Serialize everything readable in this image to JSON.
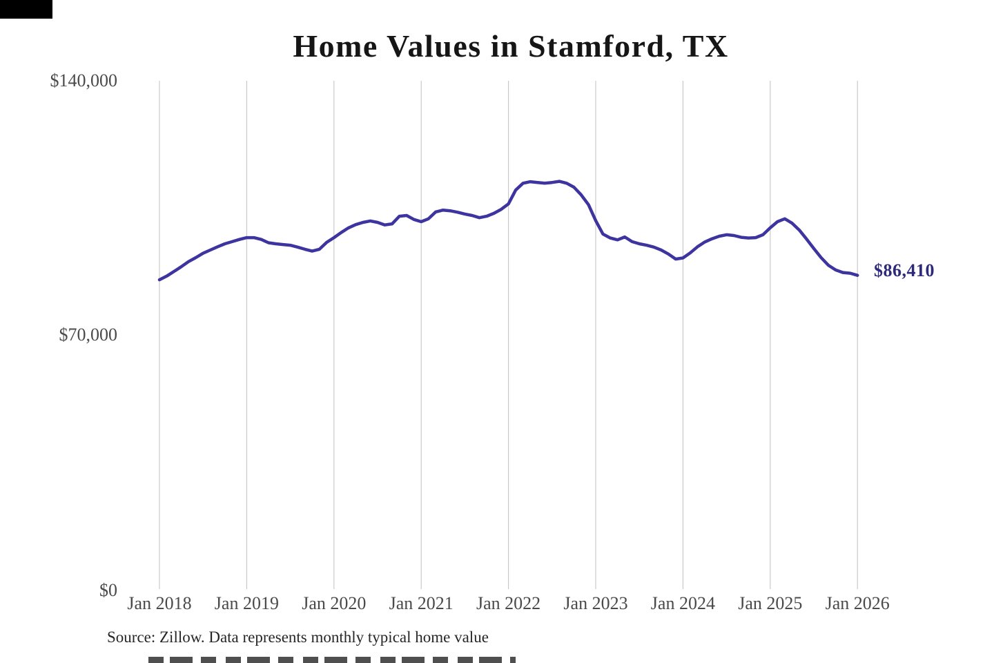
{
  "title": "Home Values in Stamford, TX",
  "source_note": "Source: Zillow. Data represents monthly typical home value",
  "end_label": "$86,410",
  "colors": {
    "line": "#3e34a0",
    "end_label_text": "#2e2a7a",
    "gridline": "#c5c5c5",
    "axis_text": "#4a4a4a",
    "title_text": "#161616",
    "source_text": "#262626"
  },
  "y_axis": {
    "ticks": [
      {
        "label": "$140,000",
        "value": 140000
      },
      {
        "label": "$70,000",
        "value": 70000
      },
      {
        "label": "$0",
        "value": 0
      }
    ]
  },
  "x_axis": {
    "ticks": [
      "Jan 2018",
      "Jan 2019",
      "Jan 2020",
      "Jan 2021",
      "Jan 2022",
      "Jan 2023",
      "Jan 2024",
      "Jan 2025",
      "Jan 2026"
    ]
  },
  "chart_data": {
    "type": "line",
    "title": "Home Values in Stamford, TX",
    "xlabel": "",
    "ylabel": "",
    "unit": "USD",
    "ylim": [
      0,
      140000
    ],
    "grid": "vertical-yearly",
    "legend": false,
    "x_monthly_start": "2018-01",
    "x_monthly_end": "2026-01",
    "last_value_label": "$86,410",
    "series": [
      {
        "name": "Typical home value",
        "monthly_values": [
          85200,
          86200,
          87500,
          88800,
          90200,
          91300,
          92500,
          93400,
          94300,
          95100,
          95700,
          96300,
          96800,
          96800,
          96300,
          95400,
          95100,
          94900,
          94700,
          94200,
          93600,
          93100,
          93600,
          95500,
          96800,
          98200,
          99500,
          100400,
          101000,
          101400,
          101000,
          100300,
          100600,
          102700,
          102900,
          101800,
          101200,
          102000,
          103900,
          104400,
          104200,
          103800,
          103300,
          102900,
          102300,
          102700,
          103500,
          104600,
          106100,
          109900,
          111800,
          112200,
          112000,
          111800,
          112000,
          112300,
          111800,
          110700,
          108600,
          105900,
          101500,
          97800,
          96700,
          96200,
          97000,
          95700,
          95100,
          94700,
          94200,
          93400,
          92300,
          90900,
          91200,
          92600,
          94300,
          95600,
          96500,
          97200,
          97600,
          97400,
          96900,
          96700,
          96800,
          97600,
          99500,
          101200,
          102000,
          100800,
          98900,
          96400,
          93800,
          91300,
          89200,
          87900,
          87200,
          87000,
          86410
        ]
      }
    ]
  }
}
